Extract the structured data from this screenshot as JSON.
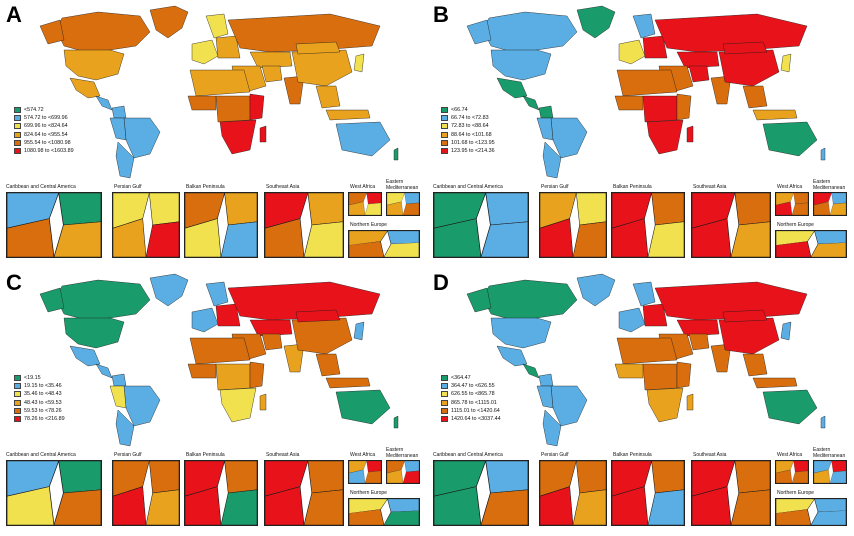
{
  "colors": {
    "c1": "#1a9b6b",
    "c2": "#5aaee3",
    "c3": "#f2e14e",
    "c4": "#e8a21d",
    "c5": "#d96e0e",
    "c6": "#e8131a",
    "ocean": "#ffffff",
    "border": "#1a1a1a"
  },
  "inset_titles": {
    "caribbean": "Caribbean and Central America",
    "gulf": "Persian Gulf",
    "balkan": "Balkan Peninsula",
    "sea": "Southeast Asia",
    "westafrica": "West Africa",
    "eastmed": "Eastern Mediterranean",
    "northeurope": "Northern Europe"
  },
  "panels": [
    {
      "letter": "A",
      "legend": [
        "<574.72",
        "574.72 to <699.96",
        "699.96 to <824.64",
        "824.64 to <955.54",
        "955.54 to <1080.98",
        "1080.98 to <1603.89"
      ]
    },
    {
      "letter": "B",
      "legend": [
        "<66.74",
        "66.74 to <72.83",
        "72.83 to <88.64",
        "88.64 to <101.68",
        "101.68 to <123.95",
        "123.95 to <214.36"
      ]
    },
    {
      "letter": "C",
      "legend": [
        "<19.15",
        "19.15 to <35.46",
        "35.46 to <48.43",
        "48.43 to <59.53",
        "59.53 to <78.26",
        "78.26 to <216.89"
      ]
    },
    {
      "letter": "D",
      "legend": [
        "<364.47",
        "364.47 to <626.55",
        "626.55 to <865.78",
        "865.78 to <1115.01",
        "1115.01 to <1420.64",
        "1420.64 to <3037.44"
      ]
    }
  ]
}
